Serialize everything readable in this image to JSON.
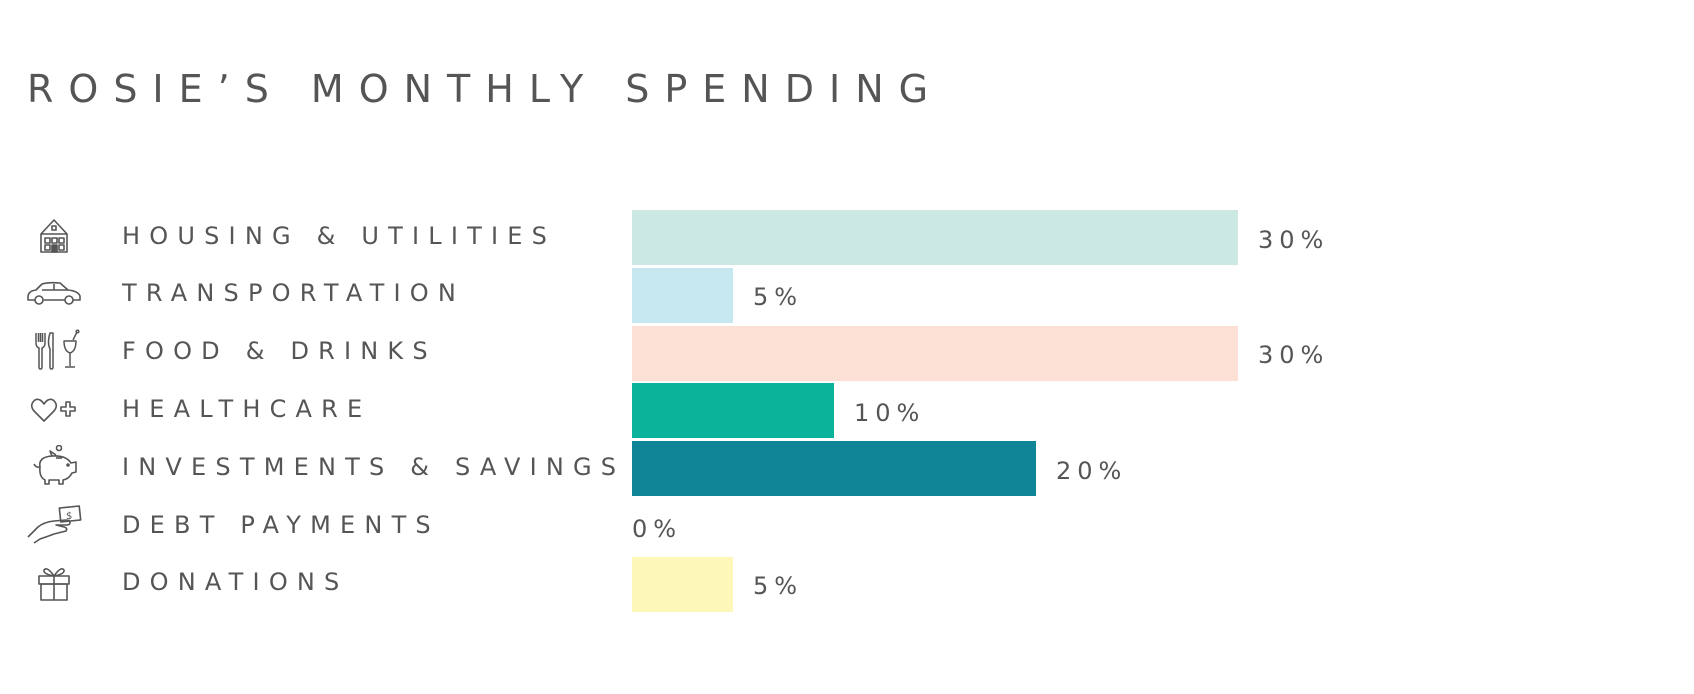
{
  "chart_data": {
    "type": "bar",
    "orientation": "horizontal",
    "title": "ROSIE’S MONTHLY SPENDING",
    "categories": [
      {
        "label": "HOUSING & UTILITIES",
        "value": 30,
        "value_label": "30%",
        "color": "#cce8e2",
        "icon": "house-icon"
      },
      {
        "label": "TRANSPORTATION",
        "value": 5,
        "value_label": "5%",
        "color": "#c7e7f0",
        "icon": "car-icon"
      },
      {
        "label": "FOOD & DRINKS",
        "value": 30,
        "value_label": "30%",
        "color": "#fce0d6",
        "icon": "utensils-glass-icon"
      },
      {
        "label": "HEALTHCARE",
        "value": 10,
        "value_label": "10%",
        "color": "#0bb39a",
        "icon": "heart-cross-icon"
      },
      {
        "label": "INVESTMENTS & SAVINGS",
        "value": 20,
        "value_label": "20%",
        "color": "#108597",
        "icon": "piggy-bank-icon"
      },
      {
        "label": "DEBT PAYMENTS",
        "value": 0,
        "value_label": "0%",
        "color": "#cccccc",
        "icon": "hand-money-icon"
      },
      {
        "label": "DONATIONS",
        "value": 5,
        "value_label": "5%",
        "color": "#fdf7ba",
        "icon": "gift-icon"
      }
    ],
    "xlim": [
      0,
      30
    ],
    "grid": false,
    "legend": "none"
  }
}
